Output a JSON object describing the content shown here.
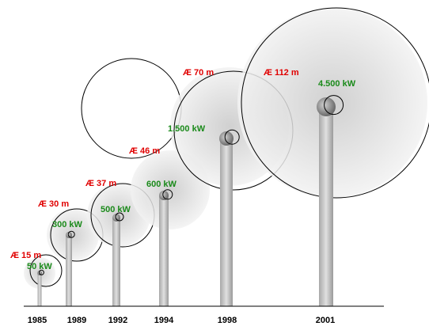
{
  "turbines": [
    {
      "year": "1985",
      "diameter": "Æ 15 m",
      "power": "50 kW"
    },
    {
      "year": "1989",
      "diameter": "Æ 30 m",
      "power": "300 kW"
    },
    {
      "year": "1992",
      "diameter": "Æ 37 m",
      "power": "500 kW"
    },
    {
      "year": "1994",
      "diameter": "Æ 46 m",
      "power": "600 kW"
    },
    {
      "year": "1998",
      "diameter": "Æ 70 m",
      "power": "1.500 kW"
    },
    {
      "year": "2001",
      "diameter": "Æ 112 m",
      "power": "4.500 kW"
    }
  ]
}
